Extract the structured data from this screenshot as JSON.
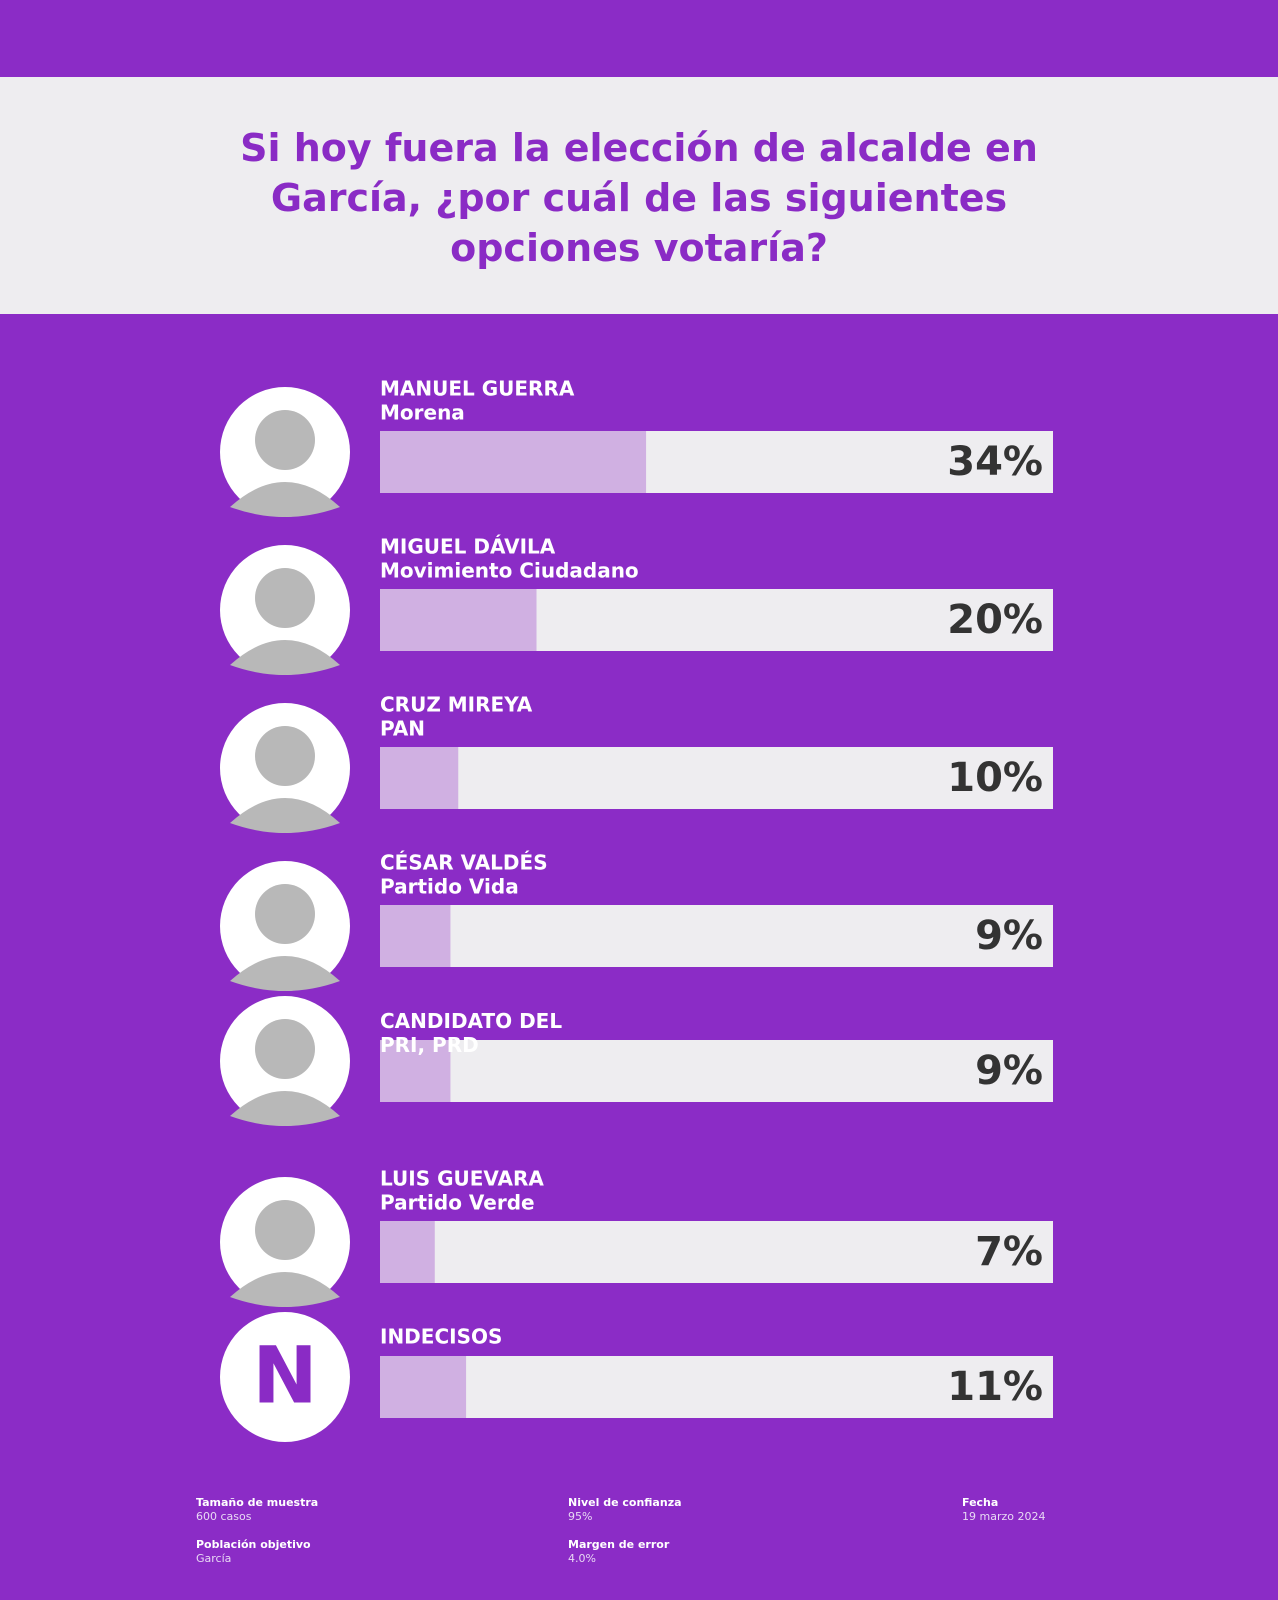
{
  "chart_data": {
    "type": "bar",
    "orientation": "horizontal",
    "title": "Si hoy fuera la elección de alcalde en García, ¿por cuál de las siguientes opciones votaría?",
    "categories": [
      "MANUEL GUERRA",
      "MIGUEL DÁVILA",
      "CRUZ MIREYA",
      "CÉSAR VALDÉS",
      "CANDIDATO DEL PRI, PRD",
      "LUIS GUEVARA",
      "INDECISOS"
    ],
    "parties": [
      "Morena",
      "Movimiento Ciudadano",
      "PAN",
      "Partido Vida",
      null,
      "Partido Verde",
      null
    ],
    "values": [
      34,
      20,
      10,
      9,
      9,
      7,
      11
    ],
    "value_labels": [
      "34%",
      "20%",
      "10%",
      "9%",
      "9%",
      "7%",
      "11%"
    ],
    "undecided_icon": "N",
    "color": "#d0b0e2",
    "track_color": "#eeedf0",
    "xlim": [
      0,
      86
    ]
  },
  "footer": [
    {
      "label": "Tamaño de muestra",
      "value": "600 casos"
    },
    {
      "label": "Nivel de confianza",
      "value": "95%"
    },
    {
      "label": "Fecha",
      "value": "19 marzo 2024"
    },
    {
      "label": "Población objetivo",
      "value": "García"
    },
    {
      "label": "Margen de error",
      "value": "4.0%"
    }
  ]
}
